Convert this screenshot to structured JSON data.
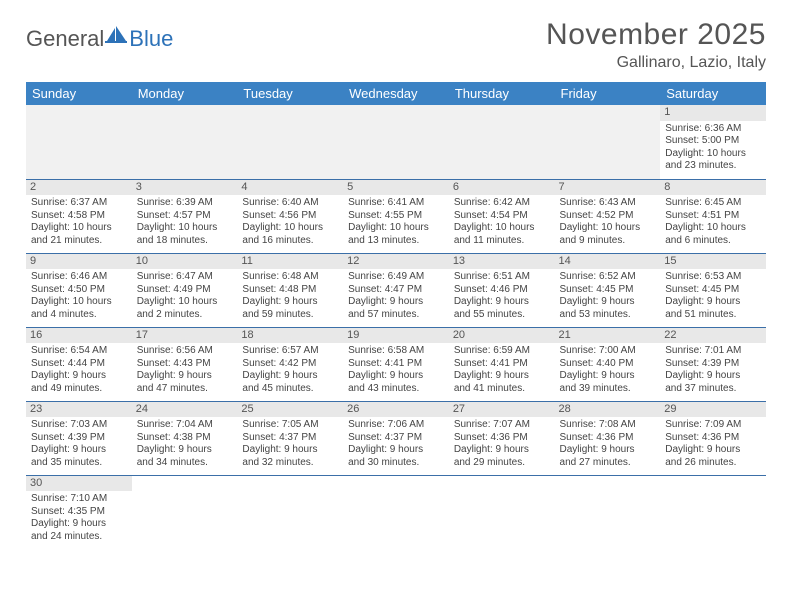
{
  "logo": {
    "text_a": "General",
    "text_b": "Blue"
  },
  "title": "November 2025",
  "location": "Gallinaro, Lazio, Italy",
  "colors": {
    "header_bg": "#3b82c4",
    "header_text": "#ffffff",
    "daynum_bg": "#e8e8e8",
    "row_border": "#3b6fa8",
    "body_text": "#444444",
    "title_text": "#555555"
  },
  "weekdays": [
    "Sunday",
    "Monday",
    "Tuesday",
    "Wednesday",
    "Thursday",
    "Friday",
    "Saturday"
  ],
  "first_weekday_index": 6,
  "days": [
    {
      "n": 1,
      "sunrise": "6:36 AM",
      "sunset": "5:00 PM",
      "day_h": 10,
      "day_m": 23
    },
    {
      "n": 2,
      "sunrise": "6:37 AM",
      "sunset": "4:58 PM",
      "day_h": 10,
      "day_m": 21
    },
    {
      "n": 3,
      "sunrise": "6:39 AM",
      "sunset": "4:57 PM",
      "day_h": 10,
      "day_m": 18
    },
    {
      "n": 4,
      "sunrise": "6:40 AM",
      "sunset": "4:56 PM",
      "day_h": 10,
      "day_m": 16
    },
    {
      "n": 5,
      "sunrise": "6:41 AM",
      "sunset": "4:55 PM",
      "day_h": 10,
      "day_m": 13
    },
    {
      "n": 6,
      "sunrise": "6:42 AM",
      "sunset": "4:54 PM",
      "day_h": 10,
      "day_m": 11
    },
    {
      "n": 7,
      "sunrise": "6:43 AM",
      "sunset": "4:52 PM",
      "day_h": 10,
      "day_m": 9
    },
    {
      "n": 8,
      "sunrise": "6:45 AM",
      "sunset": "4:51 PM",
      "day_h": 10,
      "day_m": 6
    },
    {
      "n": 9,
      "sunrise": "6:46 AM",
      "sunset": "4:50 PM",
      "day_h": 10,
      "day_m": 4
    },
    {
      "n": 10,
      "sunrise": "6:47 AM",
      "sunset": "4:49 PM",
      "day_h": 10,
      "day_m": 2
    },
    {
      "n": 11,
      "sunrise": "6:48 AM",
      "sunset": "4:48 PM",
      "day_h": 9,
      "day_m": 59
    },
    {
      "n": 12,
      "sunrise": "6:49 AM",
      "sunset": "4:47 PM",
      "day_h": 9,
      "day_m": 57
    },
    {
      "n": 13,
      "sunrise": "6:51 AM",
      "sunset": "4:46 PM",
      "day_h": 9,
      "day_m": 55
    },
    {
      "n": 14,
      "sunrise": "6:52 AM",
      "sunset": "4:45 PM",
      "day_h": 9,
      "day_m": 53
    },
    {
      "n": 15,
      "sunrise": "6:53 AM",
      "sunset": "4:45 PM",
      "day_h": 9,
      "day_m": 51
    },
    {
      "n": 16,
      "sunrise": "6:54 AM",
      "sunset": "4:44 PM",
      "day_h": 9,
      "day_m": 49
    },
    {
      "n": 17,
      "sunrise": "6:56 AM",
      "sunset": "4:43 PM",
      "day_h": 9,
      "day_m": 47
    },
    {
      "n": 18,
      "sunrise": "6:57 AM",
      "sunset": "4:42 PM",
      "day_h": 9,
      "day_m": 45
    },
    {
      "n": 19,
      "sunrise": "6:58 AM",
      "sunset": "4:41 PM",
      "day_h": 9,
      "day_m": 43
    },
    {
      "n": 20,
      "sunrise": "6:59 AM",
      "sunset": "4:41 PM",
      "day_h": 9,
      "day_m": 41
    },
    {
      "n": 21,
      "sunrise": "7:00 AM",
      "sunset": "4:40 PM",
      "day_h": 9,
      "day_m": 39
    },
    {
      "n": 22,
      "sunrise": "7:01 AM",
      "sunset": "4:39 PM",
      "day_h": 9,
      "day_m": 37
    },
    {
      "n": 23,
      "sunrise": "7:03 AM",
      "sunset": "4:39 PM",
      "day_h": 9,
      "day_m": 35
    },
    {
      "n": 24,
      "sunrise": "7:04 AM",
      "sunset": "4:38 PM",
      "day_h": 9,
      "day_m": 34
    },
    {
      "n": 25,
      "sunrise": "7:05 AM",
      "sunset": "4:37 PM",
      "day_h": 9,
      "day_m": 32
    },
    {
      "n": 26,
      "sunrise": "7:06 AM",
      "sunset": "4:37 PM",
      "day_h": 9,
      "day_m": 30
    },
    {
      "n": 27,
      "sunrise": "7:07 AM",
      "sunset": "4:36 PM",
      "day_h": 9,
      "day_m": 29
    },
    {
      "n": 28,
      "sunrise": "7:08 AM",
      "sunset": "4:36 PM",
      "day_h": 9,
      "day_m": 27
    },
    {
      "n": 29,
      "sunrise": "7:09 AM",
      "sunset": "4:36 PM",
      "day_h": 9,
      "day_m": 26
    },
    {
      "n": 30,
      "sunrise": "7:10 AM",
      "sunset": "4:35 PM",
      "day_h": 9,
      "day_m": 24
    }
  ],
  "labels": {
    "sunrise": "Sunrise:",
    "sunset": "Sunset:",
    "daylight": "Daylight:",
    "hours": "hours",
    "and": "and",
    "minutes": "minutes."
  }
}
